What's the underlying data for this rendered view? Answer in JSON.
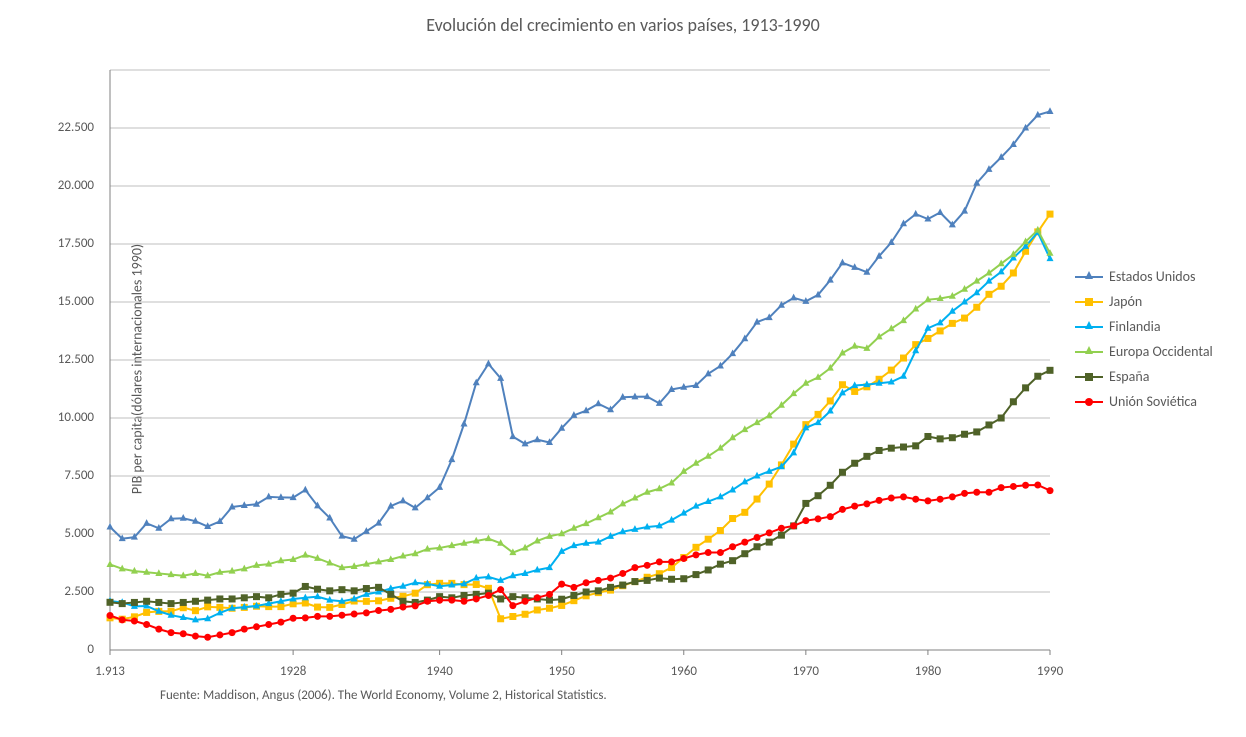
{
  "chart": {
    "type": "line",
    "title": "Evolución del crecimiento en varios países, 1913-1990",
    "ylabel": "PIB per capita(dólares internacionales 1990)",
    "source": "Fuente:  Maddison, Angus (2006). The World Economy, Volume 2, Historical Statistics.",
    "xlim": [
      1913,
      1990
    ],
    "ylim": [
      0,
      25000
    ],
    "ytick_step": 2500,
    "ytick_labels": [
      "0",
      "2.500",
      "5.000",
      "7.500",
      "10.000",
      "12.500",
      "15.000",
      "17.500",
      "20.000",
      "22.500"
    ],
    "xtick_positions": [
      1913,
      1928,
      1940,
      1950,
      1960,
      1970,
      1980,
      1990
    ],
    "xtick_labels": [
      "1.913",
      "1928",
      "1940",
      "1950",
      "1960",
      "1970",
      "1980",
      "1990"
    ],
    "x_values": [
      1913,
      1914,
      1915,
      1916,
      1917,
      1918,
      1919,
      1920,
      1921,
      1922,
      1923,
      1924,
      1925,
      1926,
      1927,
      1928,
      1929,
      1930,
      1931,
      1932,
      1933,
      1934,
      1935,
      1936,
      1937,
      1938,
      1939,
      1940,
      1941,
      1942,
      1943,
      1944,
      1945,
      1946,
      1947,
      1948,
      1949,
      1950,
      1951,
      1952,
      1953,
      1954,
      1955,
      1956,
      1957,
      1958,
      1959,
      1960,
      1961,
      1962,
      1963,
      1964,
      1965,
      1966,
      1967,
      1968,
      1969,
      1970,
      1971,
      1972,
      1973,
      1974,
      1975,
      1976,
      1977,
      1978,
      1979,
      1980,
      1981,
      1982,
      1983,
      1984,
      1985,
      1986,
      1987,
      1988,
      1989,
      1990
    ],
    "background_color": "#ffffff",
    "grid_color": "#bfbfbf",
    "grid_width": 1,
    "axis_color": "#808080",
    "line_width": 2,
    "marker_size": 7,
    "title_fontsize": 18,
    "label_fontsize": 14,
    "tick_fontsize": 13,
    "legend_fontsize": 14,
    "series": [
      {
        "name": "Estados Unidos",
        "color": "#4f81bd",
        "marker": "triangle",
        "y": [
          5301,
          4799,
          4864,
          5459,
          5248,
          5659,
          5680,
          5552,
          5323,
          5540,
          6164,
          6231,
          6282,
          6602,
          6576,
          6569,
          6899,
          6213,
          5691,
          4908,
          4777,
          5114,
          5467,
          6204,
          6430,
          6126,
          6561,
          7010,
          8206,
          9741,
          11518,
          12333,
          11709,
          9197,
          8886,
          9065,
          8944,
          9561,
          10116,
          10316,
          10613,
          10359,
          10897,
          10914,
          10920,
          10631,
          11230,
          11328,
          11402,
          11905,
          12242,
          12773,
          13419,
          14134,
          14330,
          14863,
          15179,
          15030,
          15304,
          15944,
          16689,
          16491,
          16284,
          16975,
          17567,
          18373,
          18789,
          18577,
          18856,
          18325,
          18920,
          20123,
          20717,
          21236,
          21788,
          22499,
          23059,
          23214
        ]
      },
      {
        "name": "Japón",
        "color": "#ffc000",
        "marker": "square",
        "y": [
          1387,
          1327,
          1430,
          1620,
          1664,
          1668,
          1823,
          1696,
          1860,
          1837,
          1800,
          1836,
          1885,
          1870,
          1870,
          1992,
          2026,
          1850,
          1837,
          1962,
          2111,
          2098,
          2120,
          2230,
          2315,
          2449,
          2816,
          2874,
          2873,
          2818,
          2822,
          2659,
          1346,
          1444,
          1541,
          1725,
          1800,
          1921,
          2126,
          2336,
          2474,
          2582,
          2771,
          2947,
          3135,
          3289,
          3554,
          3986,
          4426,
          4777,
          5149,
          5668,
          5934,
          6506,
          7152,
          7978,
          8874,
          9714,
          10156,
          10735,
          11434,
          11145,
          11344,
          11669,
          12064,
          12585,
          13163,
          13428,
          13754,
          14078,
          14307,
          14773,
          15331,
          15679,
          16251,
          17186,
          18022,
          18789
        ]
      },
      {
        "name": "Finlandia",
        "color": "#00b0f0",
        "marker": "triangle",
        "y": [
          2111,
          2050,
          1880,
          1897,
          1670,
          1500,
          1400,
          1300,
          1350,
          1600,
          1800,
          1850,
          1900,
          2000,
          2100,
          2200,
          2250,
          2300,
          2150,
          2100,
          2200,
          2400,
          2500,
          2650,
          2750,
          2900,
          2850,
          2750,
          2800,
          2850,
          3100,
          3150,
          3000,
          3200,
          3300,
          3450,
          3550,
          4253,
          4500,
          4600,
          4650,
          4900,
          5100,
          5200,
          5300,
          5350,
          5600,
          5900,
          6200,
          6400,
          6600,
          6900,
          7250,
          7500,
          7700,
          7900,
          8500,
          9577,
          9800,
          10300,
          11085,
          11400,
          11441,
          11500,
          11550,
          11800,
          12900,
          13869,
          14100,
          14600,
          15000,
          15400,
          15900,
          16300,
          16900,
          17400,
          18000,
          16868
        ]
      },
      {
        "name": "Europa Occidental",
        "color": "#92d050",
        "marker": "triangle",
        "y": [
          3687,
          3500,
          3400,
          3350,
          3300,
          3250,
          3200,
          3300,
          3200,
          3350,
          3400,
          3500,
          3650,
          3700,
          3850,
          3900,
          4091,
          3950,
          3750,
          3550,
          3600,
          3700,
          3800,
          3900,
          4050,
          4150,
          4350,
          4400,
          4500,
          4600,
          4700,
          4800,
          4600,
          4200,
          4400,
          4700,
          4900,
          5013,
          5250,
          5450,
          5700,
          5950,
          6300,
          6550,
          6800,
          6950,
          7200,
          7700,
          8050,
          8350,
          8700,
          9150,
          9500,
          9800,
          10100,
          10550,
          11050,
          11500,
          11750,
          12150,
          12800,
          13100,
          13000,
          13500,
          13850,
          14200,
          14700,
          15100,
          15150,
          15250,
          15550,
          15900,
          16250,
          16650,
          17050,
          17600,
          18100,
          17100
        ]
      },
      {
        "name": "España",
        "color": "#4f6228",
        "marker": "square",
        "y": [
          2056,
          2000,
          2050,
          2100,
          2050,
          2000,
          2050,
          2100,
          2150,
          2200,
          2200,
          2250,
          2300,
          2250,
          2400,
          2450,
          2739,
          2620,
          2550,
          2600,
          2550,
          2650,
          2700,
          2400,
          2100,
          2050,
          2150,
          2300,
          2250,
          2350,
          2400,
          2450,
          2200,
          2300,
          2250,
          2200,
          2150,
          2189,
          2350,
          2500,
          2550,
          2700,
          2800,
          2950,
          3000,
          3100,
          3050,
          3072,
          3250,
          3450,
          3700,
          3850,
          4150,
          4450,
          4650,
          4950,
          5350,
          6319,
          6650,
          7100,
          7661,
          8050,
          8346,
          8600,
          8700,
          8750,
          8800,
          9203,
          9100,
          9150,
          9300,
          9400,
          9700,
          10000,
          10700,
          11300,
          11800,
          12055
        ]
      },
      {
        "name": "Unión Soviética",
        "color": "#ff0000",
        "marker": "circle",
        "y": [
          1488,
          1300,
          1250,
          1100,
          900,
          750,
          700,
          600,
          550,
          650,
          750,
          900,
          1000,
          1100,
          1200,
          1370,
          1386,
          1450,
          1450,
          1500,
          1550,
          1600,
          1700,
          1750,
          1850,
          1900,
          2100,
          2144,
          2150,
          2100,
          2200,
          2350,
          2600,
          1913,
          2100,
          2250,
          2400,
          2841,
          2700,
          2900,
          3000,
          3100,
          3300,
          3550,
          3650,
          3800,
          3800,
          3945,
          4100,
          4200,
          4200,
          4450,
          4650,
          4850,
          5050,
          5250,
          5350,
          5575,
          5650,
          5750,
          6059,
          6200,
          6300,
          6450,
          6550,
          6600,
          6500,
          6427,
          6500,
          6600,
          6750,
          6800,
          6800,
          7000,
          7050,
          7100,
          7112,
          6871
        ]
      }
    ]
  }
}
